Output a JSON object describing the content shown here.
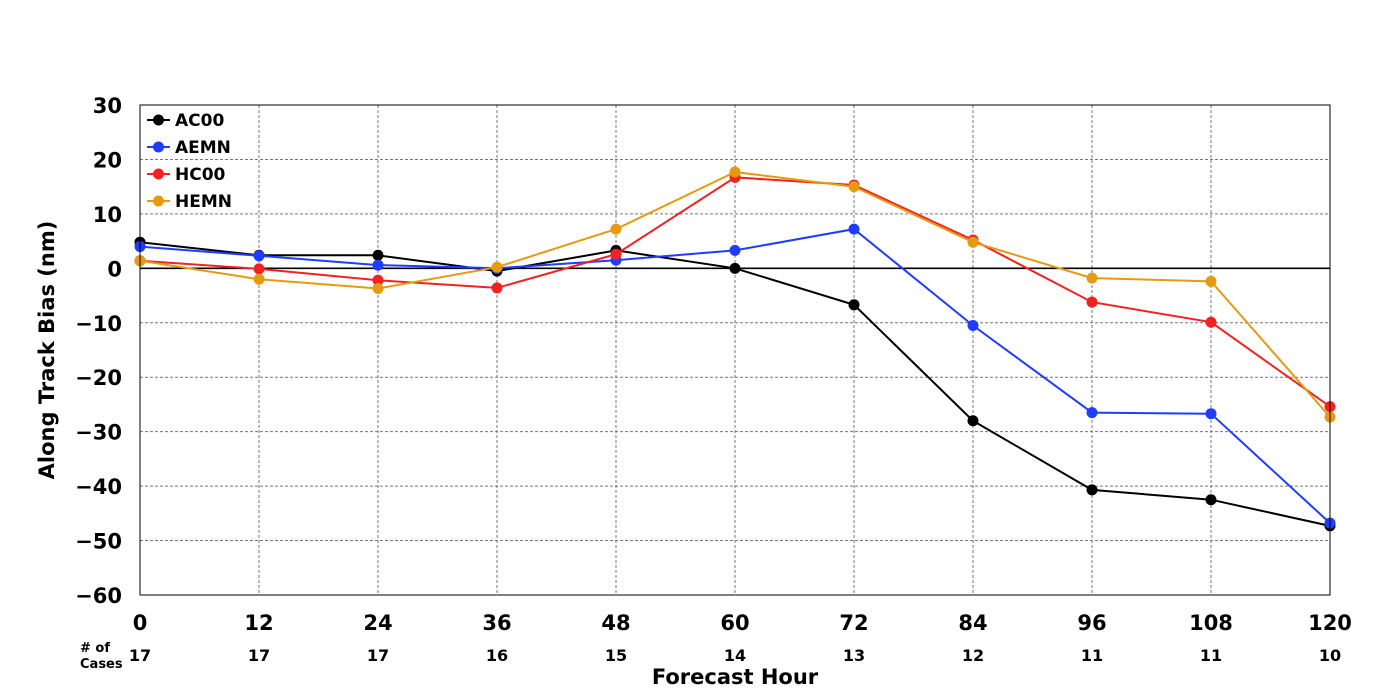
{
  "chart_data": {
    "type": "line",
    "xlabel": "Forecast Hour",
    "ylabel": "Along Track Bias (nm)",
    "x": [
      0,
      12,
      24,
      36,
      48,
      60,
      72,
      84,
      96,
      108,
      120
    ],
    "xlim": [
      0,
      120
    ],
    "ylim": [
      -60,
      30
    ],
    "xticks": [
      "0",
      "12",
      "24",
      "36",
      "48",
      "60",
      "72",
      "84",
      "96",
      "108",
      "120"
    ],
    "yticks": [
      "30",
      "20",
      "10",
      "0",
      "−10",
      "−20",
      "−30",
      "−40",
      "−50",
      "−60"
    ],
    "grid": true,
    "legend_position": "top-left",
    "cases_label": "# of Cases",
    "cases": [
      "17",
      "17",
      "17",
      "16",
      "15",
      "14",
      "13",
      "12",
      "11",
      "11",
      "10"
    ],
    "series": [
      {
        "name": "AC00",
        "color": "#000000",
        "values": [
          4.8,
          2.4,
          2.4,
          -0.5,
          3.3,
          0.0,
          -6.7,
          -28.0,
          -40.7,
          -42.5,
          -47.3
        ]
      },
      {
        "name": "AEMN",
        "color": "#1f3cff",
        "values": [
          4.0,
          2.3,
          0.6,
          0.0,
          1.5,
          3.3,
          7.2,
          -10.5,
          -26.5,
          -26.7,
          -46.8
        ]
      },
      {
        "name": "HC00",
        "color": "#f22222",
        "values": [
          1.4,
          -0.1,
          -2.2,
          -3.6,
          2.6,
          16.7,
          15.3,
          5.2,
          -6.2,
          -9.9,
          -25.4
        ]
      },
      {
        "name": "HEMN",
        "color": "#e59a0f",
        "values": [
          1.4,
          -2.0,
          -3.7,
          0.2,
          7.2,
          17.7,
          15.0,
          4.8,
          -1.8,
          -2.4,
          -27.3
        ]
      }
    ]
  }
}
